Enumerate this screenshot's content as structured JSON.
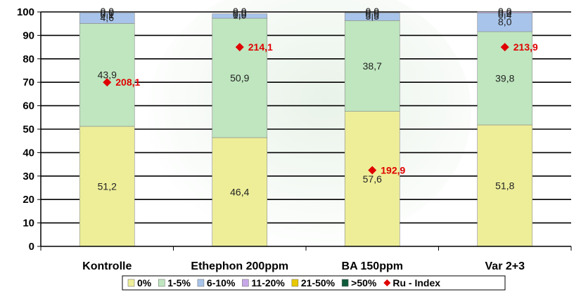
{
  "chart_data": {
    "type": "bar",
    "stacked": true,
    "categories": [
      "Kontrolle",
      "Ethephon 200ppm",
      "BA 150ppm",
      "Var 2+3"
    ],
    "ylim": [
      0,
      100
    ],
    "yticks": [
      "0",
      "10",
      "20",
      "30",
      "40",
      "50",
      "60",
      "70",
      "80",
      "90",
      "100"
    ],
    "grid": true,
    "legend_position": "bottom",
    "series": [
      {
        "name": "0%",
        "color": "#eeee99",
        "values": [
          51.2,
          46.4,
          57.6,
          51.8
        ],
        "labels": [
          "51,2",
          "46,4",
          "57,6",
          "51,8"
        ]
      },
      {
        "name": "1-5%",
        "color": "#bfe6bf",
        "values": [
          43.9,
          50.9,
          38.7,
          39.8
        ],
        "labels": [
          "43,9",
          "50,9",
          "38,7",
          "39,8"
        ]
      },
      {
        "name": "6-10%",
        "color": "#a8c4ea",
        "values": [
          4.6,
          1.9,
          3.3,
          8.0
        ],
        "labels": [
          "4,6",
          "1,9",
          "3,3",
          "8,0"
        ]
      },
      {
        "name": "11-20%",
        "color": "#c6a8e8",
        "values": [
          0.1,
          0.0,
          0.0,
          0.4
        ],
        "labels": [
          "0,1",
          "0,0",
          "0,0",
          "0,4"
        ]
      },
      {
        "name": "21-50%",
        "color": "#e8c800",
        "values": [
          0.0,
          0.0,
          0.0,
          0.0
        ],
        "labels": [
          "0,0",
          "0,0",
          "0,0",
          "0,0"
        ]
      },
      {
        "name": ">50%",
        "color": "#0e5a3a",
        "values": [
          0.0,
          0.0,
          0.0,
          0.0
        ],
        "labels": [
          "0,0",
          "0,0",
          "0,0",
          "0,0"
        ]
      }
    ],
    "ru_index": {
      "name": "Ru - Index",
      "color": "#e00000",
      "values": [
        208.1,
        214.1,
        192.9,
        213.9
      ],
      "labels": [
        "208,1",
        "214,1",
        "192,9",
        "213,9"
      ],
      "marker_y": [
        70,
        85,
        32.5,
        85
      ]
    }
  }
}
